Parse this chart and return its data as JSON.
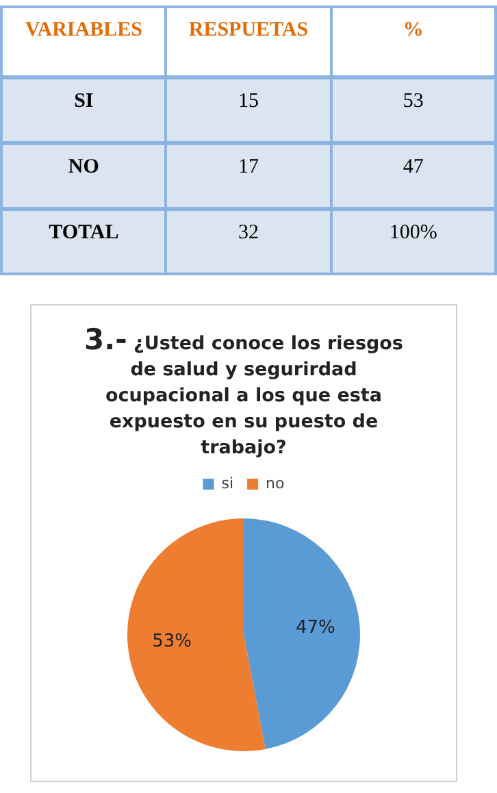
{
  "chart_data": {
    "type": "pie",
    "title": "3.- ¿Usted conoce los riesgos de salud y segurirdad ocupacional a los que esta expuesto en su puesto de trabajo?",
    "categories": [
      "si",
      "no"
    ],
    "values": [
      47,
      53
    ],
    "colors": [
      "#5b9bd5",
      "#ed7d31"
    ],
    "legend": "top",
    "value_labels": [
      "47%",
      "53%"
    ],
    "annotations": [
      "VARIABLES",
      "RESPUETAS",
      "%",
      "SI",
      "15",
      "53",
      "NO",
      "17",
      "47",
      "TOTAL",
      "32",
      "100%"
    ]
  }
}
